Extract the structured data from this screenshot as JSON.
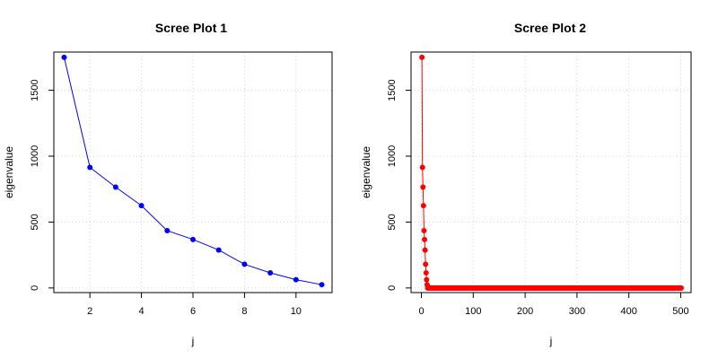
{
  "chart_data": [
    {
      "type": "line",
      "title": "Scree Plot 1",
      "xlabel": "j",
      "ylabel": "eigenvalue",
      "xlim": [
        0.6,
        11.4
      ],
      "ylim": [
        -35,
        1790
      ],
      "x_ticks": [
        2,
        4,
        6,
        8,
        10
      ],
      "y_ticks": [
        0,
        500,
        1000,
        1500
      ],
      "grid": true,
      "color": "#0000ff",
      "series": [
        {
          "x": [
            1,
            2,
            3,
            4,
            5,
            6,
            7,
            8,
            9,
            10,
            11
          ],
          "values": [
            1750,
            915,
            765,
            625,
            435,
            368,
            288,
            180,
            115,
            63,
            25
          ]
        }
      ]
    },
    {
      "type": "line",
      "title": "Scree Plot 2",
      "xlabel": "j",
      "ylabel": "eigenvalue",
      "xlim": [
        -20,
        520
      ],
      "ylim": [
        -35,
        1790
      ],
      "x_ticks": [
        0,
        100,
        200,
        300,
        400,
        500
      ],
      "y_ticks": [
        0,
        500,
        1000,
        1500
      ],
      "grid": true,
      "color": "#ff0000",
      "n_points": 501,
      "series": [
        {
          "head_values": [
            1750,
            915,
            765,
            625,
            435,
            368,
            288,
            180,
            115,
            63,
            25
          ],
          "tail_value": 0
        }
      ]
    }
  ]
}
